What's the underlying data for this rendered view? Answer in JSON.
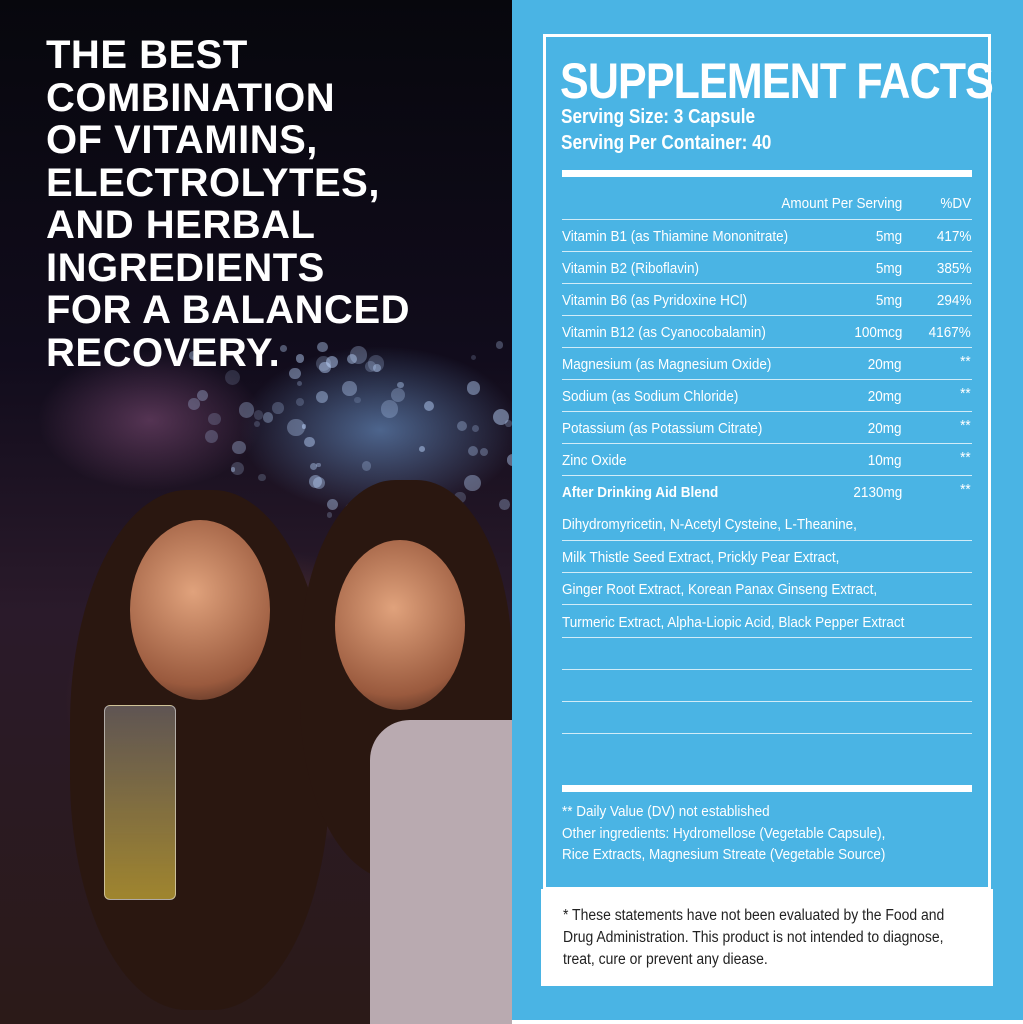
{
  "headline": [
    "THE BEST",
    "COMBINATION",
    "OF VITAMINS,",
    "ELECTROLYTES,",
    "AND HERBAL",
    "INGREDIENTS",
    "FOR A BALANCED",
    "RECOVERY."
  ],
  "facts": {
    "title": "SUPPLEMENT FACTS",
    "serving_size": "Serving Size: 3 Capsule",
    "servings_per_container": "Serving Per Container: 40",
    "col_amount": "Amount Per Serving",
    "col_dv": "%DV",
    "rows": [
      {
        "name": "Vitamin B1 (as Thiamine Mononitrate)",
        "amount": "5mg",
        "dv": "417%"
      },
      {
        "name": "Vitamin B2 (Riboflavin)",
        "amount": "5mg",
        "dv": "385%"
      },
      {
        "name": "Vitamin B6 (as Pyridoxine HCl)",
        "amount": "5mg",
        "dv": "294%"
      },
      {
        "name": "Vitamin B12 (as Cyanocobalamin)",
        "amount": "100mcg",
        "dv": "4167%"
      },
      {
        "name": "Magnesium (as Magnesium Oxide)",
        "amount": "20mg",
        "dv": "**"
      },
      {
        "name": "Sodium (as Sodium Chloride)",
        "amount": "20mg",
        "dv": "**"
      },
      {
        "name": "Potassium (as Potassium Citrate)",
        "amount": "20mg",
        "dv": "**"
      },
      {
        "name": "Zinc Oxide",
        "amount": "10mg",
        "dv": "**"
      },
      {
        "name": "After Drinking Aid Blend",
        "amount": "2130mg",
        "dv": "**"
      }
    ],
    "blend_lines": [
      "Dihydromyricetin, N-Acetyl Cysteine, L-Theanine,",
      "Milk Thistle Seed Extract, Prickly Pear Extract,",
      "Ginger Root Extract, Korean Panax Ginseng Extract,",
      "Turmeric Extract, Alpha-Liopic Acid, Black Pepper Extract"
    ],
    "footnote": "** Daily Value (DV) not established",
    "other_1": "Other ingredients: Hydromellose (Vegetable Capsule),",
    "other_2": "Rice Extracts, Magnesium Streate (Vegetable Source)"
  },
  "disclaimer": "* These statements have not been evaluated by the Food and Drug Administration. This product is not intended to diagnose, treat, cure or prevent any diease.",
  "colors": {
    "panel": "#4ab4e4",
    "text": "#ffffff"
  }
}
